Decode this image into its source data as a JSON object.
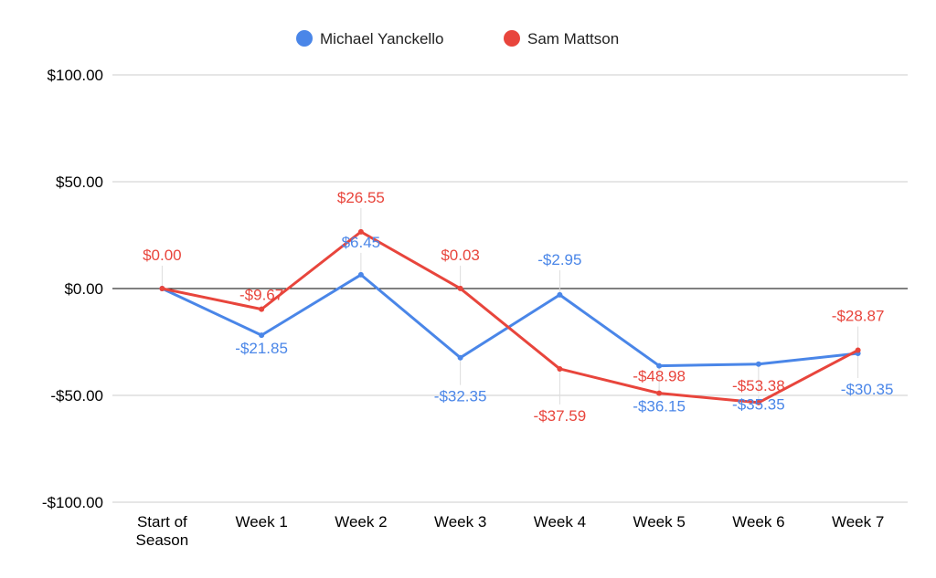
{
  "chart_data": {
    "type": "line",
    "title": "",
    "xlabel": "",
    "ylabel": "",
    "categories": [
      "Start of Season",
      "Week 1",
      "Week 2",
      "Week 3",
      "Week 4",
      "Week 5",
      "Week 6",
      "Week 7"
    ],
    "category_lines": [
      [
        "Start of",
        "Season"
      ],
      [
        "Week 1"
      ],
      [
        "Week 2"
      ],
      [
        "Week 3"
      ],
      [
        "Week 4"
      ],
      [
        "Week 5"
      ],
      [
        "Week 6"
      ],
      [
        "Week 7"
      ]
    ],
    "ylim": [
      -100,
      100
    ],
    "y_ticks": [
      -100,
      -50,
      0,
      50,
      100
    ],
    "y_tick_labels": [
      "-$100.00",
      "-$50.00",
      "$0.00",
      "$50.00",
      "$100.00"
    ],
    "grid": true,
    "legend_position": "top",
    "series": [
      {
        "name": "Michael Yanckello",
        "color": "#4a86e8",
        "values": [
          0,
          -21.85,
          6.45,
          -32.35,
          -2.95,
          -36.15,
          -35.35,
          -30.35
        ],
        "labels": [
          "",
          "-$21.85",
          "$6.45",
          "-$32.35",
          "-$2.95",
          "-$36.15",
          "-$35.35",
          "-$30.35"
        ]
      },
      {
        "name": "Sam Mattson",
        "color": "#e8453c",
        "values": [
          0,
          -9.67,
          26.55,
          0.03,
          -37.59,
          -48.98,
          -53.38,
          -28.87
        ],
        "labels": [
          "$0.00",
          "-$9.67",
          "$26.55",
          "$0.03",
          "-$37.59",
          "-$48.98",
          "-$53.38",
          "-$28.87"
        ]
      }
    ]
  }
}
